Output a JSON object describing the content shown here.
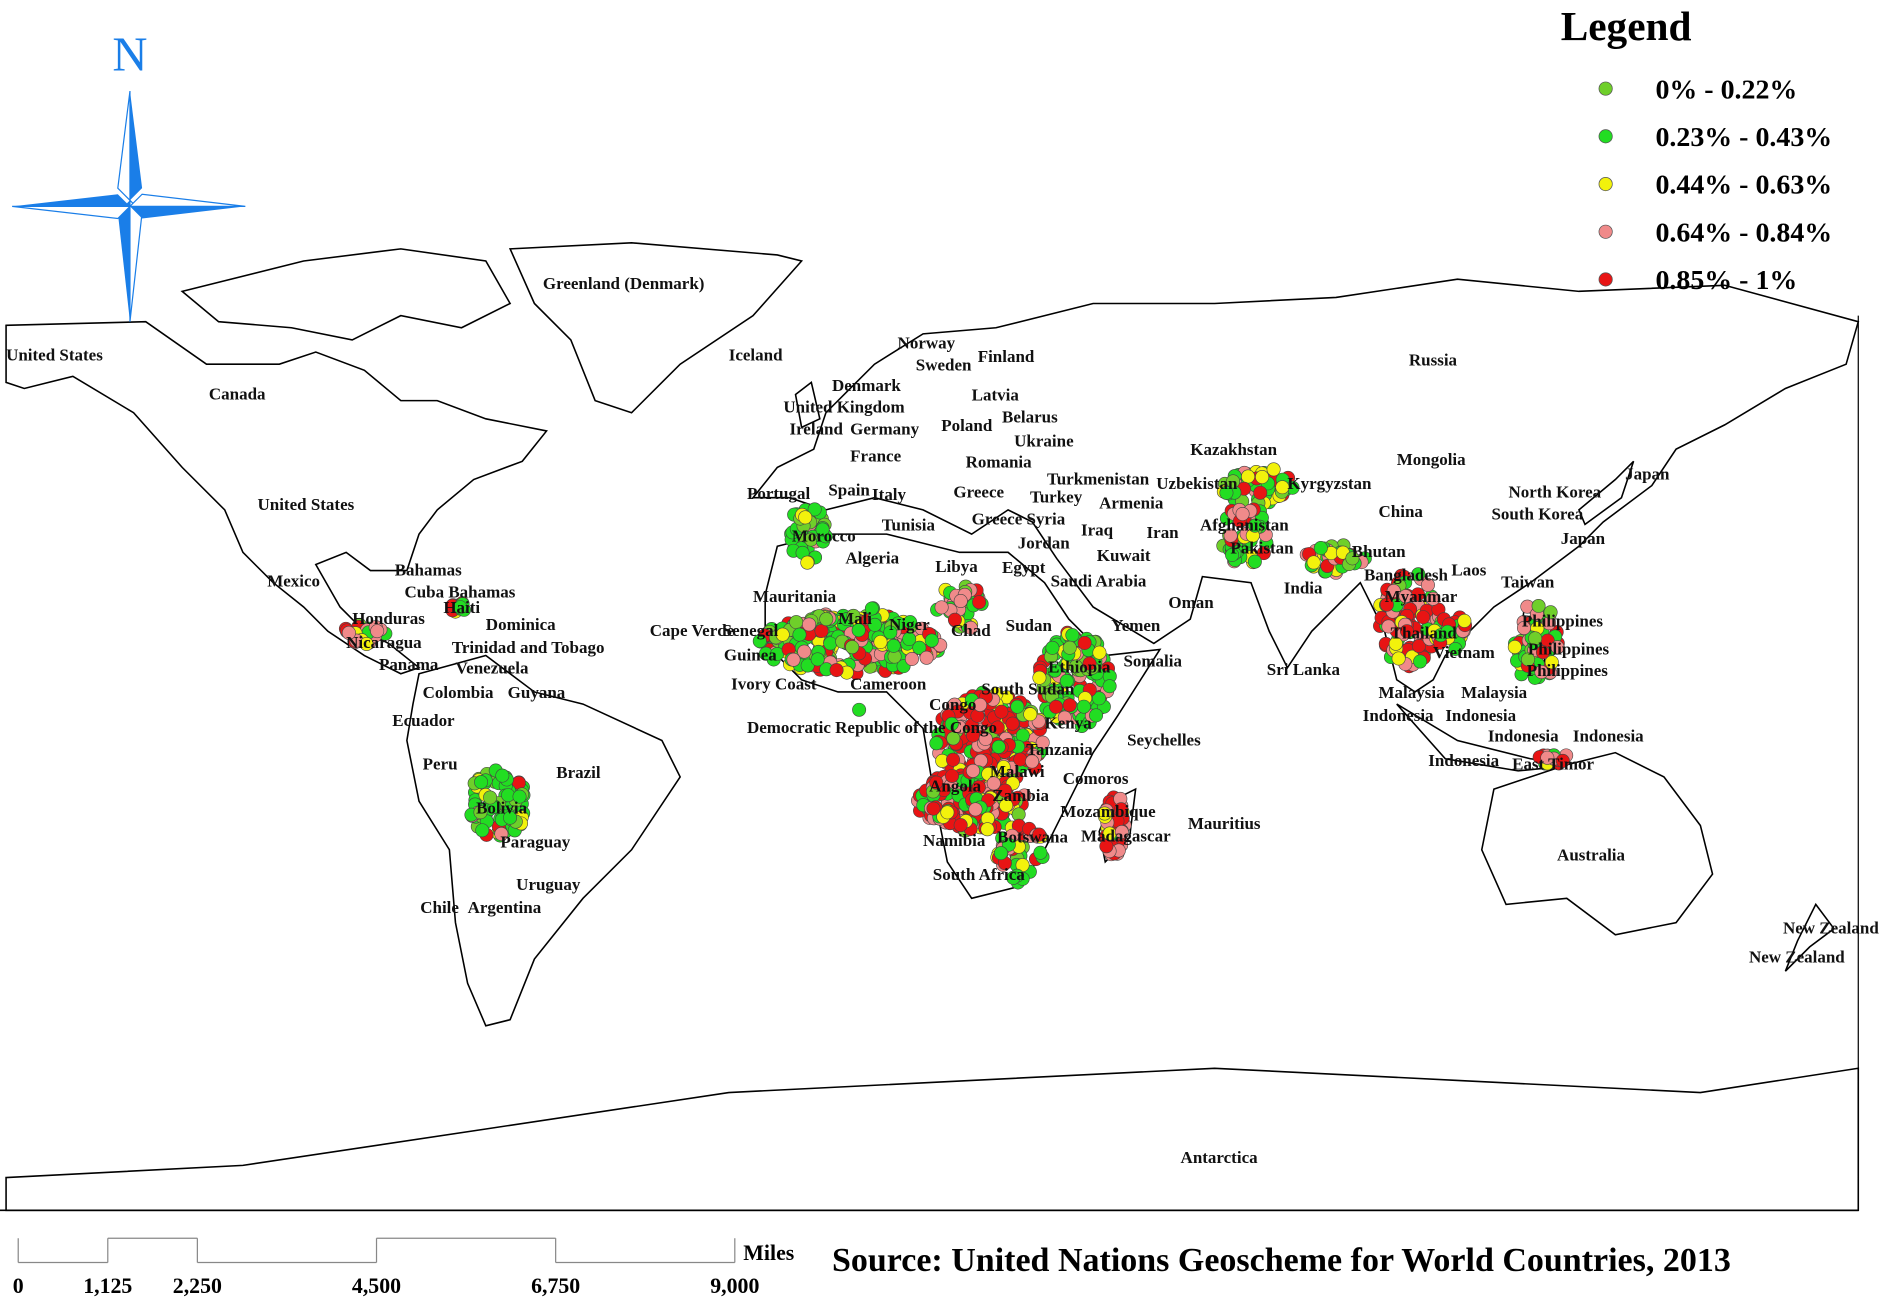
{
  "north": "N",
  "legend": {
    "title": "Legend",
    "items": [
      {
        "label": "0% - 0.22%",
        "color": "#6fcf2a"
      },
      {
        "label": "0.23% - 0.43%",
        "color": "#22dd22"
      },
      {
        "label": "0.44% - 0.63%",
        "color": "#f2f20c"
      },
      {
        "label": "0.64% - 0.84%",
        "color": "#f08a8a"
      },
      {
        "label": "0.85% - 1%",
        "color": "#e81414"
      }
    ]
  },
  "labels": [
    "United States",
    "Canada",
    "United States",
    "Mexico",
    "Bahamas",
    "Cuba Bahamas",
    "Haiti",
    "Honduras",
    "Nicaragua",
    "Dominica",
    "Trinidad and Tobago",
    "Panama",
    "Venezuela",
    "Colombia",
    "Guyana",
    "Ecuador",
    "Peru",
    "Brazil",
    "Bolivia",
    "Paraguay",
    "Uruguay",
    "Chile",
    "Argentina",
    "Greenland (Denmark)",
    "Iceland",
    "Norway",
    "Sweden",
    "Finland",
    "Denmark",
    "United Kingdom",
    "Ireland",
    "Germany",
    "Poland",
    "Latvia",
    "Belarus",
    "Ukraine",
    "France",
    "Romania",
    "Portugal",
    "Spain",
    "Italy",
    "Greece",
    "Turkey",
    "Tunisia",
    "Greece Syria",
    "Iraq",
    "Jordan",
    "Iran",
    "Kuwait",
    "Egypt",
    "Saudi Arabia",
    "Oman",
    "Yemen",
    "Libya",
    "Algeria",
    "Morocco",
    "Mauritania",
    "Mali",
    "Niger",
    "Chad",
    "Sudan",
    "Cape Verde",
    "Senegal",
    "Guinea",
    "Ivory Coast",
    "Cameroon",
    "Congo",
    "South Sudan",
    "Ethiopia",
    "Somalia",
    "Democratic Republic of the Congo",
    "Kenya",
    "Tanzania",
    "Seychelles",
    "Malawi",
    "Comoros",
    "Angola",
    "Zambia",
    "Mozambique",
    "Madagascar",
    "Mauritius",
    "Namibia",
    "Botswana",
    "South Africa",
    "Russia",
    "Kazakhstan",
    "Turkmenistan",
    "Armenia",
    "Uzbekistan",
    "Kyrgyzstan",
    "Afghanistan",
    "Pakistan",
    "India",
    "Sri Lanka",
    "Bhutan",
    "Bangladesh",
    "Myanmar",
    "Thailand",
    "Laos",
    "Vietnam",
    "China",
    "Mongolia",
    "North Korea",
    "South Korea",
    "Japan",
    "Japan",
    "Taiwan",
    "Philippines",
    "Philippines",
    "Philippines",
    "Malaysia",
    "Malaysia",
    "Indonesia",
    "Indonesia",
    "Indonesia",
    "Indonesia",
    "Indonesia",
    "East Timor",
    "Australia",
    "New Zealand",
    "New Zealand",
    "Antarctica"
  ],
  "scale_bar": {
    "unit": "Miles",
    "ticks": [
      0,
      {
        "value": 1125,
        "label": "1,125"
      },
      {
        "value": 2250,
        "label": "2,250"
      },
      {
        "value": 4500,
        "label": "4,500"
      },
      {
        "value": 6750,
        "label": "6,750"
      },
      {
        "value": 9000,
        "label": "9,000"
      }
    ]
  },
  "source": "Source: United Nations Geoscheme for World Countries, 2013"
}
